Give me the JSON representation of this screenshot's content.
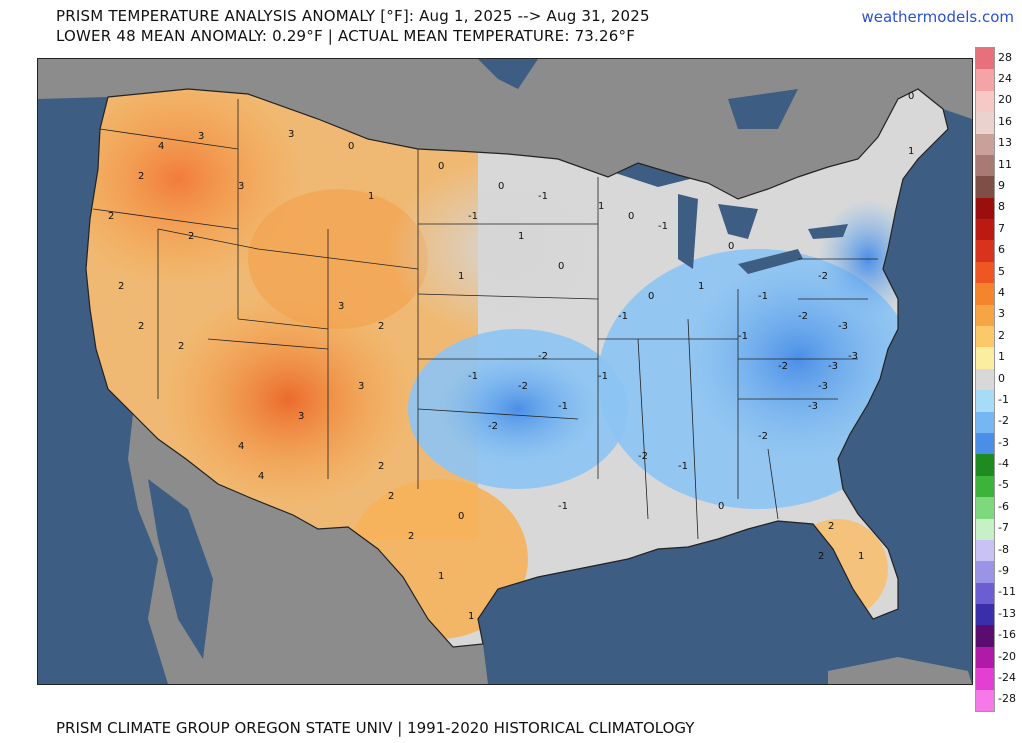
{
  "header": {
    "title_line1": "PRISM TEMPERATURE ANALYSIS ANOMALY [°F]: Aug 1, 2025 --> Aug 31, 2025",
    "title_line2": "LOWER 48 MEAN ANOMALY: 0.29°F | ACTUAL MEAN TEMPERATURE: 73.26°F",
    "brand": "weathermodels.com"
  },
  "footer": {
    "credit": "PRISM CLIMATE GROUP OREGON STATE UNIV | 1991-2020 HISTORICAL CLIMATOLOGY"
  },
  "legend": {
    "labels": [
      "28",
      "24",
      "20",
      "16",
      "13",
      "11",
      "9",
      "8",
      "7",
      "6",
      "5",
      "4",
      "3",
      "2",
      "1",
      "0",
      "-1",
      "-2",
      "-3",
      "-4",
      "-5",
      "-6",
      "-7",
      "-8",
      "-9",
      "-11",
      "-13",
      "-16",
      "-20",
      "-24",
      "-28"
    ],
    "colors": [
      "#e8707a",
      "#f4a3a6",
      "#f7c9c6",
      "#ead2cf",
      "#c9a09a",
      "#a77b74",
      "#7e4f46",
      "#9b0e0e",
      "#bb1a12",
      "#d8331c",
      "#ee5624",
      "#f5852d",
      "#f6a544",
      "#fbc96a",
      "#fbeea0",
      "#d8d8d8",
      "#a8dcf6",
      "#76b6f2",
      "#4b8ee6",
      "#1f8a1f",
      "#3cb43c",
      "#7ed97e",
      "#c7f0c7",
      "#c7c3f2",
      "#9a94e6",
      "#6a5ed2",
      "#3b2eaa",
      "#5a0d6e",
      "#b01aa8",
      "#e33fd2",
      "#f57ae8"
    ]
  },
  "map": {
    "anomaly_labels": [
      {
        "label": "4"
      },
      {
        "label": "3"
      },
      {
        "label": "2"
      },
      {
        "label": "2"
      },
      {
        "label": "3"
      },
      {
        "label": "2"
      },
      {
        "label": "3"
      },
      {
        "label": "2"
      },
      {
        "label": "0"
      },
      {
        "label": "1"
      },
      {
        "label": "0"
      },
      {
        "label": "-1"
      },
      {
        "label": "0"
      },
      {
        "label": "1"
      },
      {
        "label": "-1"
      },
      {
        "label": "0"
      },
      {
        "label": "1"
      },
      {
        "label": "0"
      },
      {
        "label": "-1"
      },
      {
        "label": "1"
      },
      {
        "label": "0"
      },
      {
        "label": "-1"
      },
      {
        "label": "0"
      },
      {
        "label": "1"
      },
      {
        "label": "-2"
      },
      {
        "label": "-2"
      },
      {
        "label": "-3"
      },
      {
        "label": "-3"
      },
      {
        "label": "-2"
      },
      {
        "label": "-1"
      },
      {
        "label": "-3"
      },
      {
        "label": "-2"
      },
      {
        "label": "4"
      },
      {
        "label": "3"
      },
      {
        "label": "4"
      },
      {
        "label": "3"
      },
      {
        "label": "2"
      },
      {
        "label": "3"
      },
      {
        "label": "2"
      },
      {
        "label": "2"
      },
      {
        "label": "-1"
      },
      {
        "label": "-2"
      },
      {
        "label": "-2"
      },
      {
        "label": "-1"
      },
      {
        "label": "-2"
      },
      {
        "label": "-1"
      },
      {
        "label": "-3"
      },
      {
        "label": "-3"
      },
      {
        "label": "2"
      },
      {
        "label": "1"
      },
      {
        "label": "2"
      },
      {
        "label": "0"
      },
      {
        "label": "1"
      },
      {
        "label": "2"
      },
      {
        "label": "1"
      },
      {
        "label": "-1"
      },
      {
        "label": "2"
      },
      {
        "label": "2"
      },
      {
        "label": "-2"
      },
      {
        "label": "-1"
      },
      {
        "label": "0"
      },
      {
        "label": "-1"
      },
      {
        "label": "1"
      },
      {
        "label": "0"
      }
    ]
  }
}
